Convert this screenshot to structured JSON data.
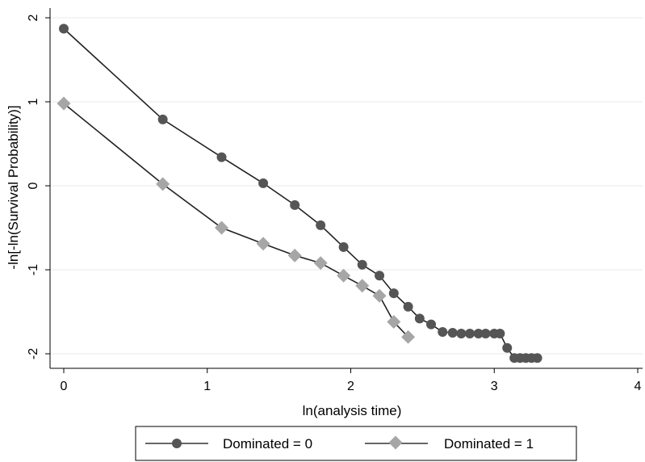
{
  "chart_data": {
    "type": "line",
    "title": "",
    "xlabel": "ln(analysis time)",
    "ylabel": "-ln[-ln(Survival Probability)]",
    "xlim": [
      0,
      4
    ],
    "ylim": [
      -2.15,
      2.1
    ],
    "xticks": [
      0,
      1,
      2,
      3,
      4
    ],
    "yticks": [
      -2,
      -1,
      0,
      1,
      2
    ],
    "grid": true,
    "legend_position": "bottom",
    "series": [
      {
        "name": "Dominated = 0",
        "marker": "circle",
        "color": "#555555",
        "points": [
          [
            0.0,
            1.87
          ],
          [
            0.69,
            0.79
          ],
          [
            1.1,
            0.34
          ],
          [
            1.39,
            0.03
          ],
          [
            1.61,
            -0.23
          ],
          [
            1.79,
            -0.47
          ],
          [
            1.95,
            -0.73
          ],
          [
            2.08,
            -0.94
          ],
          [
            2.2,
            -1.07
          ],
          [
            2.3,
            -1.28
          ],
          [
            2.4,
            -1.44
          ],
          [
            2.48,
            -1.58
          ],
          [
            2.56,
            -1.65
          ],
          [
            2.64,
            -1.74
          ],
          [
            2.71,
            -1.75
          ],
          [
            2.77,
            -1.76
          ],
          [
            2.83,
            -1.76
          ],
          [
            2.89,
            -1.76
          ],
          [
            2.94,
            -1.76
          ],
          [
            3.0,
            -1.76
          ],
          [
            3.04,
            -1.76
          ],
          [
            3.09,
            -1.93
          ],
          [
            3.14,
            -2.05
          ],
          [
            3.18,
            -2.05
          ],
          [
            3.22,
            -2.05
          ],
          [
            3.26,
            -2.05
          ],
          [
            3.3,
            -2.05
          ]
        ]
      },
      {
        "name": "Dominated = 1",
        "marker": "diamond",
        "color": "#a6a6a6",
        "points": [
          [
            0.0,
            0.98
          ],
          [
            0.69,
            0.02
          ],
          [
            1.1,
            -0.5
          ],
          [
            1.39,
            -0.69
          ],
          [
            1.61,
            -0.83
          ],
          [
            1.79,
            -0.92
          ],
          [
            1.95,
            -1.07
          ],
          [
            2.08,
            -1.19
          ],
          [
            2.2,
            -1.31
          ],
          [
            2.3,
            -1.62
          ],
          [
            2.4,
            -1.8
          ]
        ]
      }
    ]
  }
}
